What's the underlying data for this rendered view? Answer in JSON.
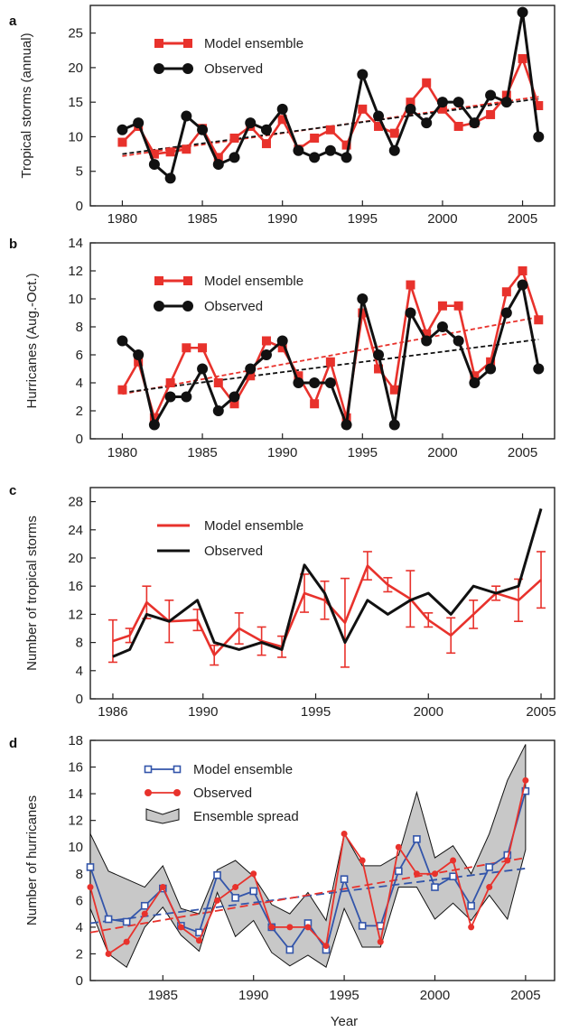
{
  "figure": {
    "xlabel": "Year"
  },
  "colors": {
    "model_red": "#e8322c",
    "observed_black": "#111111",
    "model_blue": "#3355aa",
    "observed_red": "#e8322c",
    "spread_fill": "#c8c8c8",
    "axis": "#222222"
  },
  "chart_data": [
    {
      "panel": "a",
      "type": "line",
      "ylabel": "Tropical storms (annual)",
      "xlim": [
        1978,
        2007
      ],
      "ylim": [
        0,
        29
      ],
      "xticks": [
        1980,
        1985,
        1990,
        1995,
        2000,
        2005
      ],
      "yticks": [
        0,
        5,
        10,
        15,
        20,
        25
      ],
      "legend": {
        "placement": "top-left",
        "entries": [
          "Model ensemble",
          "Observed"
        ]
      },
      "x": [
        1980,
        1981,
        1982,
        1983,
        1984,
        1985,
        1986,
        1987,
        1988,
        1989,
        1990,
        1991,
        1992,
        1993,
        1994,
        1995,
        1996,
        1997,
        1998,
        1999,
        2000,
        2001,
        2002,
        2003,
        2004,
        2005,
        2006
      ],
      "series": [
        {
          "name": "Model ensemble",
          "values": [
            9.2,
            11.5,
            7.5,
            7.8,
            8.2,
            11.2,
            7,
            9.8,
            11.5,
            9,
            12.5,
            8.2,
            9.8,
            11,
            8.8,
            14,
            11.5,
            10.5,
            15,
            17.8,
            14,
            11.5,
            12,
            13.2,
            16,
            21.3,
            14.5
          ]
        },
        {
          "name": "Observed",
          "values": [
            11,
            12,
            6,
            4,
            13,
            11,
            6,
            7,
            12,
            11,
            14,
            8,
            7,
            8,
            7,
            19,
            13,
            8,
            14,
            12,
            15,
            15,
            12,
            16,
            15,
            28,
            10
          ]
        }
      ],
      "trends": [
        {
          "series": "Model ensemble",
          "from": [
            1980,
            7.2
          ],
          "to": [
            2006,
            15.8
          ]
        },
        {
          "series": "Observed",
          "from": [
            1980,
            7.5
          ],
          "to": [
            2006,
            15.5
          ]
        }
      ]
    },
    {
      "panel": "b",
      "type": "line",
      "ylabel": "Hurricanes (Aug.-Oct.)",
      "xlim": [
        1978,
        2007
      ],
      "ylim": [
        0,
        14
      ],
      "xticks": [
        1980,
        1985,
        1990,
        1995,
        2000,
        2005
      ],
      "yticks": [
        0,
        2,
        4,
        6,
        8,
        10,
        12,
        14
      ],
      "legend": {
        "placement": "top-left",
        "entries": [
          "Model ensemble",
          "Observed"
        ]
      },
      "x": [
        1980,
        1981,
        1982,
        1983,
        1984,
        1985,
        1986,
        1987,
        1988,
        1989,
        1990,
        1991,
        1992,
        1993,
        1994,
        1995,
        1996,
        1997,
        1998,
        1999,
        2000,
        2001,
        2002,
        2003,
        2004,
        2005,
        2006
      ],
      "series": [
        {
          "name": "Model ensemble",
          "values": [
            3.5,
            5.5,
            1.5,
            4,
            6.5,
            6.5,
            4,
            2.5,
            4.5,
            7,
            6.5,
            4.5,
            2.5,
            5.5,
            1.5,
            9,
            5,
            3.5,
            11,
            7.5,
            9.5,
            9.5,
            4.5,
            5.5,
            10.5,
            12,
            8.5
          ]
        },
        {
          "name": "Observed",
          "values": [
            7,
            6,
            1,
            3,
            3,
            5,
            2,
            3,
            5,
            6,
            7,
            4,
            4,
            4,
            1,
            10,
            6,
            1,
            9,
            7,
            8,
            7,
            4,
            5,
            9,
            11,
            5
          ]
        }
      ],
      "trends": [
        {
          "series": "Model ensemble",
          "from": [
            1980,
            3.2
          ],
          "to": [
            2006,
            8.7
          ]
        },
        {
          "series": "Observed",
          "from": [
            1980,
            3.3
          ],
          "to": [
            2006,
            7.1
          ]
        }
      ]
    },
    {
      "panel": "c",
      "type": "line",
      "ylabel": "Number of tropical storms",
      "xlim": [
        1985,
        2005.6
      ],
      "ylim": [
        0,
        30
      ],
      "xticks": [
        1986,
        1990,
        1995,
        2000,
        2005
      ],
      "yticks": [
        0,
        4,
        8,
        12,
        16,
        20,
        24,
        28
      ],
      "legend": {
        "placement": "top-left",
        "entries": [
          "Model ensemble",
          "Observed"
        ]
      },
      "series": [
        {
          "name": "Model ensemble",
          "x": [
            1986,
            1986.75,
            1987.5,
            1988.5,
            1989.75,
            1990.5,
            1991.6,
            1992.6,
            1993.5,
            1994.5,
            1995.4,
            1996.3,
            1997.3,
            1998.2,
            1999.2,
            2000,
            2001,
            2002,
            2003,
            2004,
            2005
          ],
          "values": [
            8.2,
            9,
            13.7,
            11,
            11.2,
            6.2,
            10,
            8.2,
            7.4,
            15,
            14,
            10.8,
            18.9,
            16.2,
            14.2,
            11.2,
            9,
            12,
            15,
            14,
            16.9
          ],
          "err": [
            3,
            1,
            2.3,
            3,
            1.5,
            1.4,
            2.2,
            2,
            1.5,
            2.7,
            2.7,
            6.3,
            2,
            1,
            4,
            1,
            2.5,
            2,
            1,
            3,
            4
          ]
        },
        {
          "name": "Observed",
          "x": [
            1986,
            1986.75,
            1987.5,
            1988.5,
            1989.75,
            1990.5,
            1991.6,
            1992.6,
            1993.5,
            1994.5,
            1995.4,
            1996.3,
            1997.3,
            1998.2,
            1999.2,
            2000,
            2001,
            2002,
            2003,
            2004,
            2005
          ],
          "values": [
            6,
            7,
            12,
            11,
            14,
            8,
            7,
            8,
            7,
            19,
            15,
            8,
            14,
            12,
            14,
            15,
            12,
            16,
            15,
            16,
            27
          ]
        }
      ]
    },
    {
      "panel": "d",
      "type": "line",
      "ylabel": "Number of hurricanes",
      "xlim": [
        1981,
        2006.6
      ],
      "ylim": [
        0,
        18
      ],
      "xticks": [
        1985,
        1990,
        1995,
        2000,
        2005
      ],
      "yticks": [
        0,
        2,
        4,
        6,
        8,
        10,
        12,
        14,
        16,
        18
      ],
      "legend": {
        "placement": "top-left",
        "entries": [
          "Model ensemble",
          "Observed",
          "Ensemble spread"
        ]
      },
      "x": [
        1981,
        1982,
        1983,
        1984,
        1985,
        1986,
        1987,
        1988,
        1989,
        1990,
        1991,
        1992,
        1993,
        1994,
        1995,
        1996,
        1997,
        1998,
        1999,
        2000,
        2001,
        2002,
        2003,
        2004,
        2005
      ],
      "series": [
        {
          "name": "Model ensemble",
          "values": [
            8.5,
            4.6,
            4.4,
            5.6,
            6.9,
            4.1,
            3.6,
            7.9,
            6.2,
            6.7,
            4,
            2.3,
            4.3,
            2.3,
            7.6,
            4.1,
            4.1,
            8.2,
            10.6,
            7,
            7.8,
            5.6,
            8.5,
            9.4,
            14.2
          ]
        },
        {
          "name": "Observed",
          "values": [
            7,
            2,
            2.9,
            5,
            7,
            4,
            3,
            6,
            7,
            8,
            4,
            4,
            4,
            2.6,
            11,
            9,
            2.9,
            10,
            8,
            8,
            9,
            4,
            7,
            9,
            15
          ]
        }
      ],
      "spread": {
        "name": "Ensemble spread",
        "upper": [
          11,
          8.2,
          7.6,
          7,
          8.6,
          5.4,
          5,
          8.3,
          9,
          7.8,
          5.7,
          5,
          6.6,
          4.5,
          11,
          8.6,
          8.6,
          9.4,
          14.1,
          9.2,
          10.1,
          8,
          11,
          15,
          17.7
        ],
        "lower": [
          5.4,
          2,
          1,
          4,
          5.5,
          3.4,
          2.2,
          6.6,
          3.3,
          4.5,
          2.1,
          1.1,
          1.9,
          1,
          5.4,
          2.5,
          2.5,
          7,
          7,
          4.6,
          5.8,
          4.5,
          6.4,
          4.6,
          9.8
        ]
      },
      "trends": [
        {
          "series": "Model ensemble",
          "from": [
            1981,
            4.3
          ],
          "to": [
            2005,
            8.4
          ]
        },
        {
          "series": "Observed",
          "from": [
            1981,
            3.6
          ],
          "to": [
            2005,
            9.2
          ]
        }
      ]
    }
  ],
  "panels": [
    {
      "letter": "a"
    },
    {
      "letter": "b"
    },
    {
      "letter": "c"
    },
    {
      "letter": "d"
    }
  ]
}
